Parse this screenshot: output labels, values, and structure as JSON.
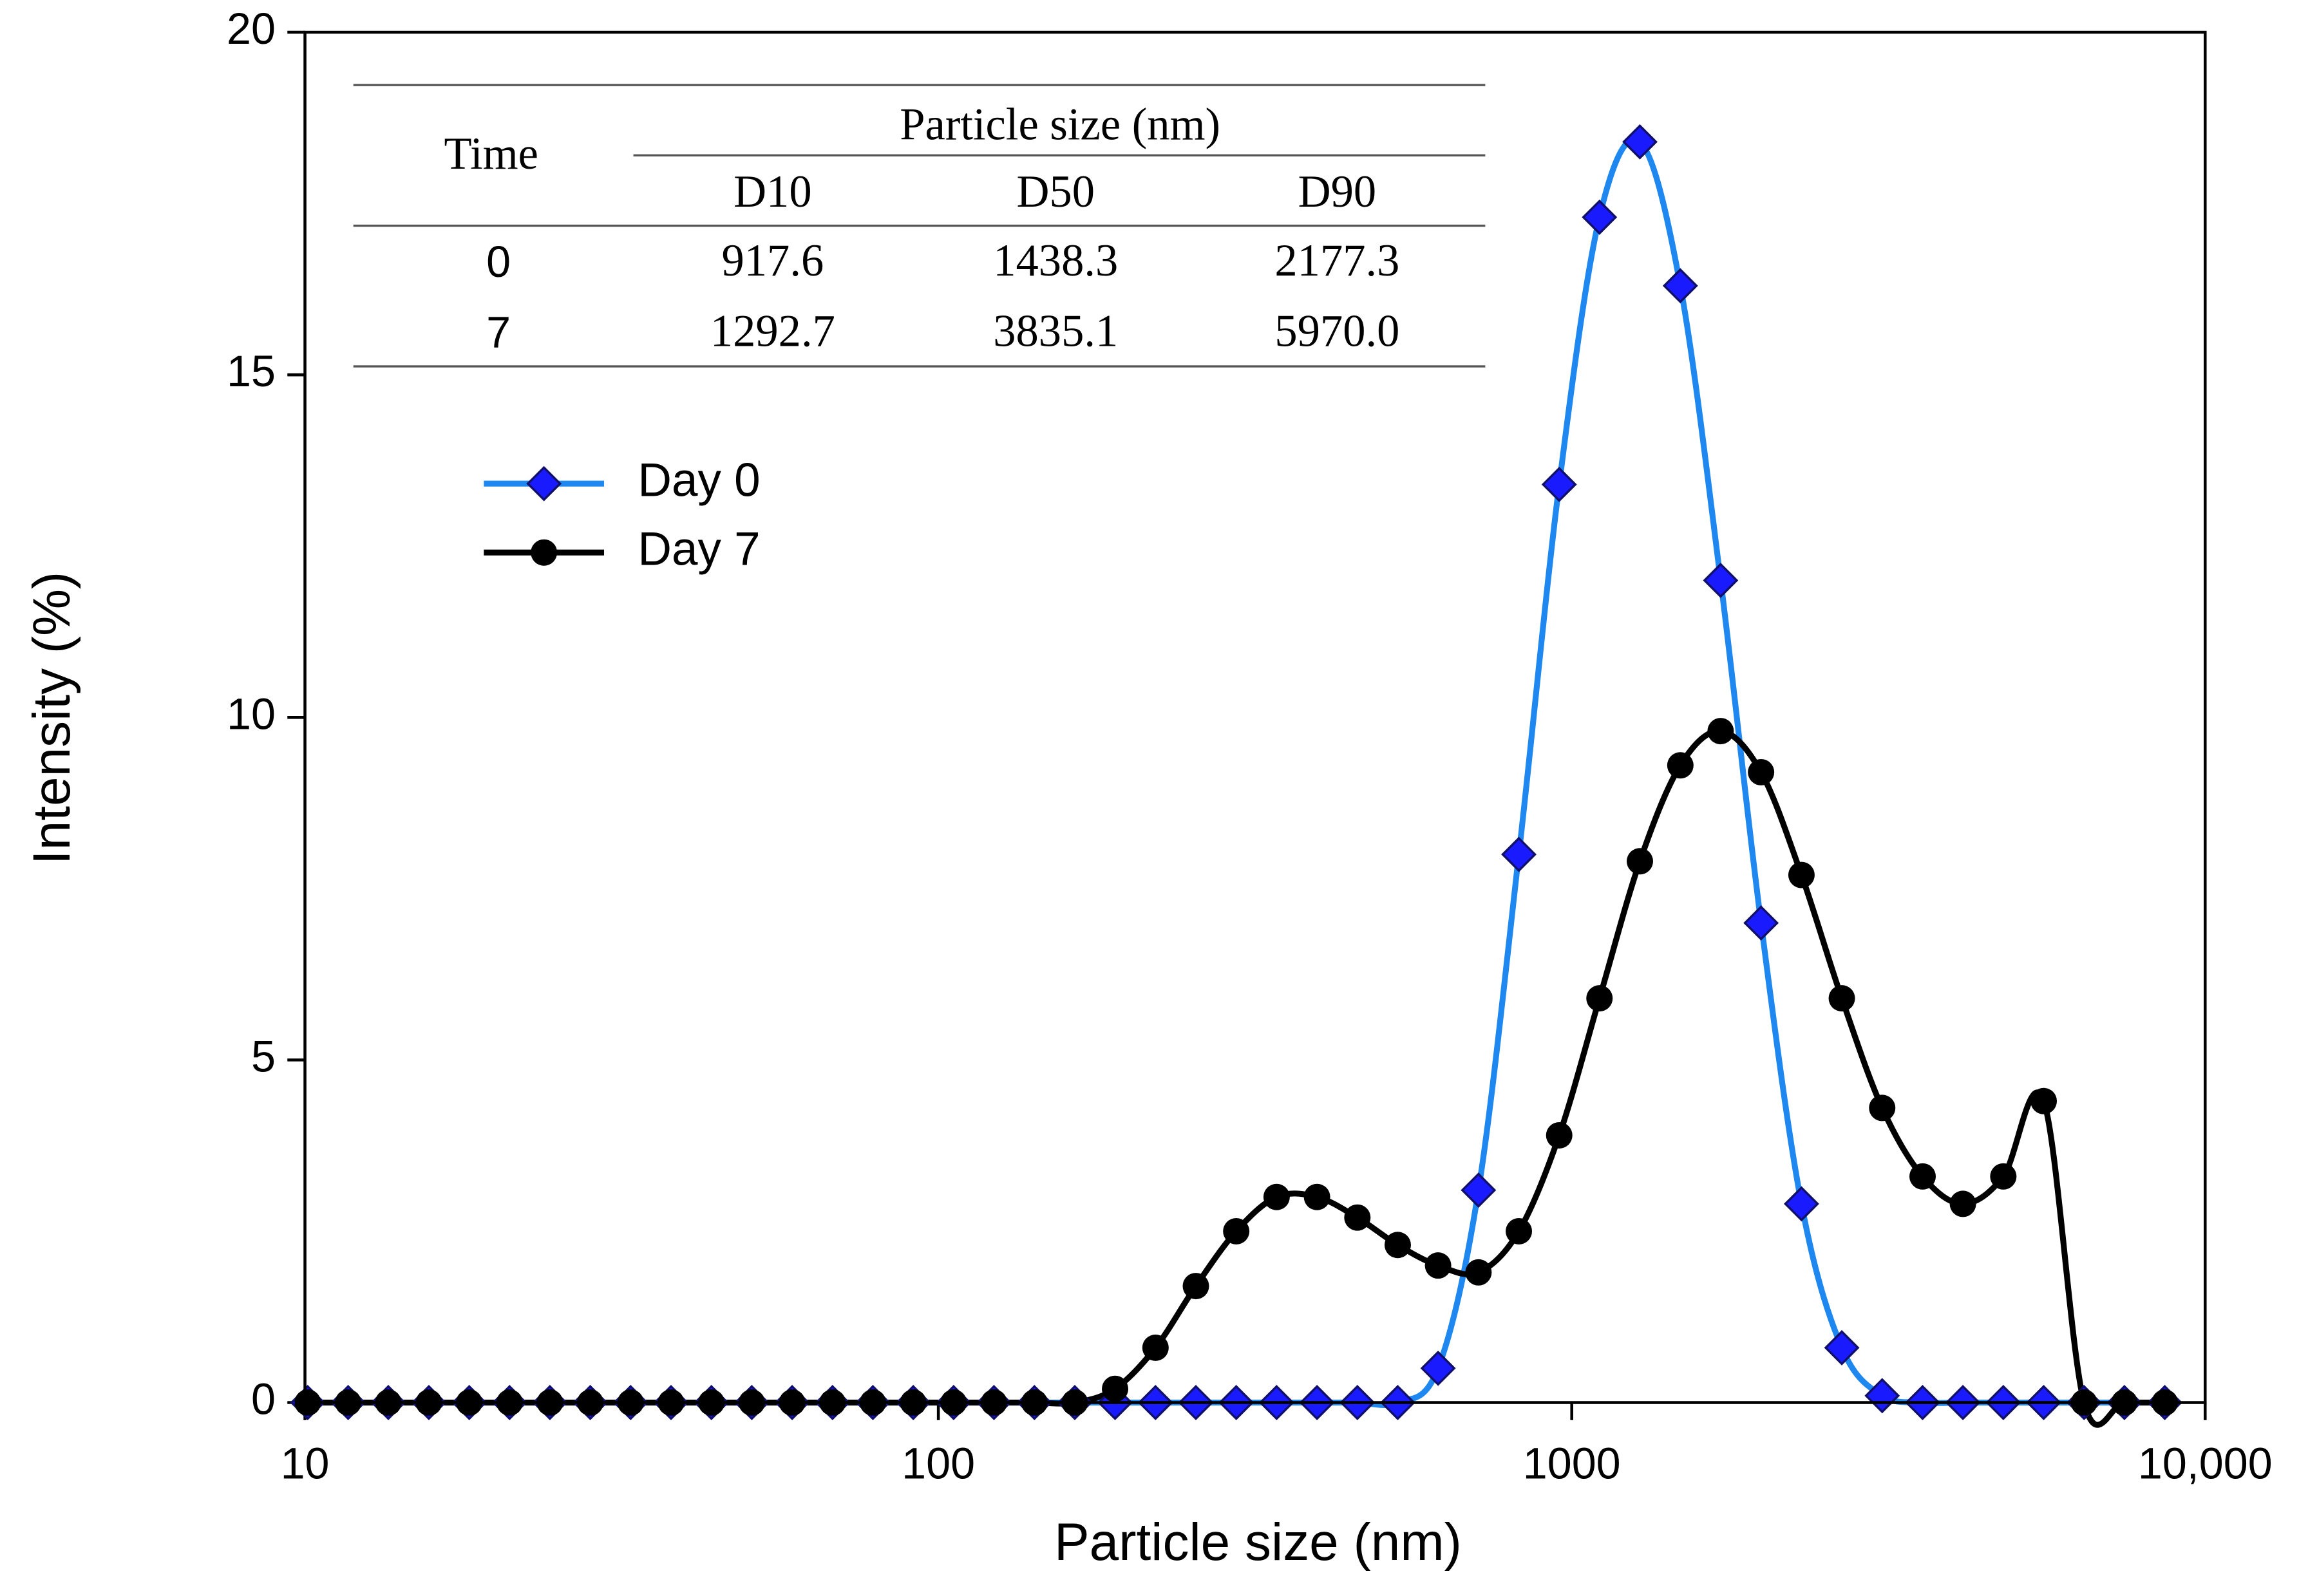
{
  "chart_data": {
    "type": "line",
    "x_label": "Particle size (nm)",
    "y_label": "Intensity (%)",
    "x_scale": "log",
    "xlim": [
      10,
      10000
    ],
    "xticks": [
      10,
      100,
      1000,
      {
        "value": 10000,
        "label": "10,000"
      }
    ],
    "ylim": [
      0,
      20
    ],
    "yticks": [
      0,
      5,
      10,
      15,
      20
    ],
    "x": [
      10.1,
      11.7,
      13.54,
      15.69,
      18.17,
      21.04,
      24.36,
      28.21,
      32.67,
      37.84,
      43.82,
      50.75,
      58.77,
      68.06,
      78.82,
      91.28,
      105.7,
      122.4,
      141.8,
      164.2,
      190.1,
      220.2,
      255.0,
      295.3,
      342.0,
      396.1,
      458.7,
      531.2,
      615.1,
      712.4,
      825.0,
      955.4,
      1106,
      1281,
      1484,
      1718,
      1990,
      2305,
      2669,
      3091,
      3580,
      4145,
      4801,
      5560,
      6439,
      7456,
      8635
    ],
    "series": [
      {
        "name": "Day 0",
        "color": "#1e88f0",
        "marker_color": "#1a1aff",
        "marker": "diamond",
        "values": [
          0,
          0,
          0,
          0,
          0,
          0,
          0,
          0,
          0,
          0,
          0,
          0,
          0,
          0,
          0,
          0,
          0,
          0,
          0,
          0,
          0,
          0,
          0,
          0,
          0,
          0,
          0,
          0,
          0.5,
          3.1,
          8.0,
          13.4,
          17.3,
          18.4,
          16.3,
          12.0,
          7.0,
          2.9,
          0.8,
          0.1,
          0,
          0,
          0,
          0,
          0,
          0,
          0
        ]
      },
      {
        "name": "Day 7",
        "color": "#000000",
        "marker_color": "#000000",
        "marker": "circle",
        "values": [
          0,
          0,
          0,
          0,
          0,
          0,
          0,
          0,
          0,
          0,
          0,
          0,
          0,
          0,
          0,
          0,
          0,
          0,
          0,
          0,
          0.2,
          0.8,
          1.7,
          2.5,
          3.0,
          3.0,
          2.7,
          2.3,
          2.0,
          1.9,
          2.5,
          3.9,
          5.9,
          7.9,
          9.3,
          9.8,
          9.2,
          7.7,
          5.9,
          4.3,
          3.3,
          2.9,
          3.3,
          4.4,
          0,
          0,
          0
        ]
      }
    ],
    "legend": "upper left",
    "table": {
      "header": "Time",
      "group": "Particle size (nm)",
      "columns": [
        "D10",
        "D50",
        "D90"
      ],
      "rows": [
        [
          "0",
          "917.6",
          "1438.3",
          "2177.3"
        ],
        [
          "7",
          "1292.7",
          "3835.1",
          "5970.0"
        ]
      ]
    }
  }
}
